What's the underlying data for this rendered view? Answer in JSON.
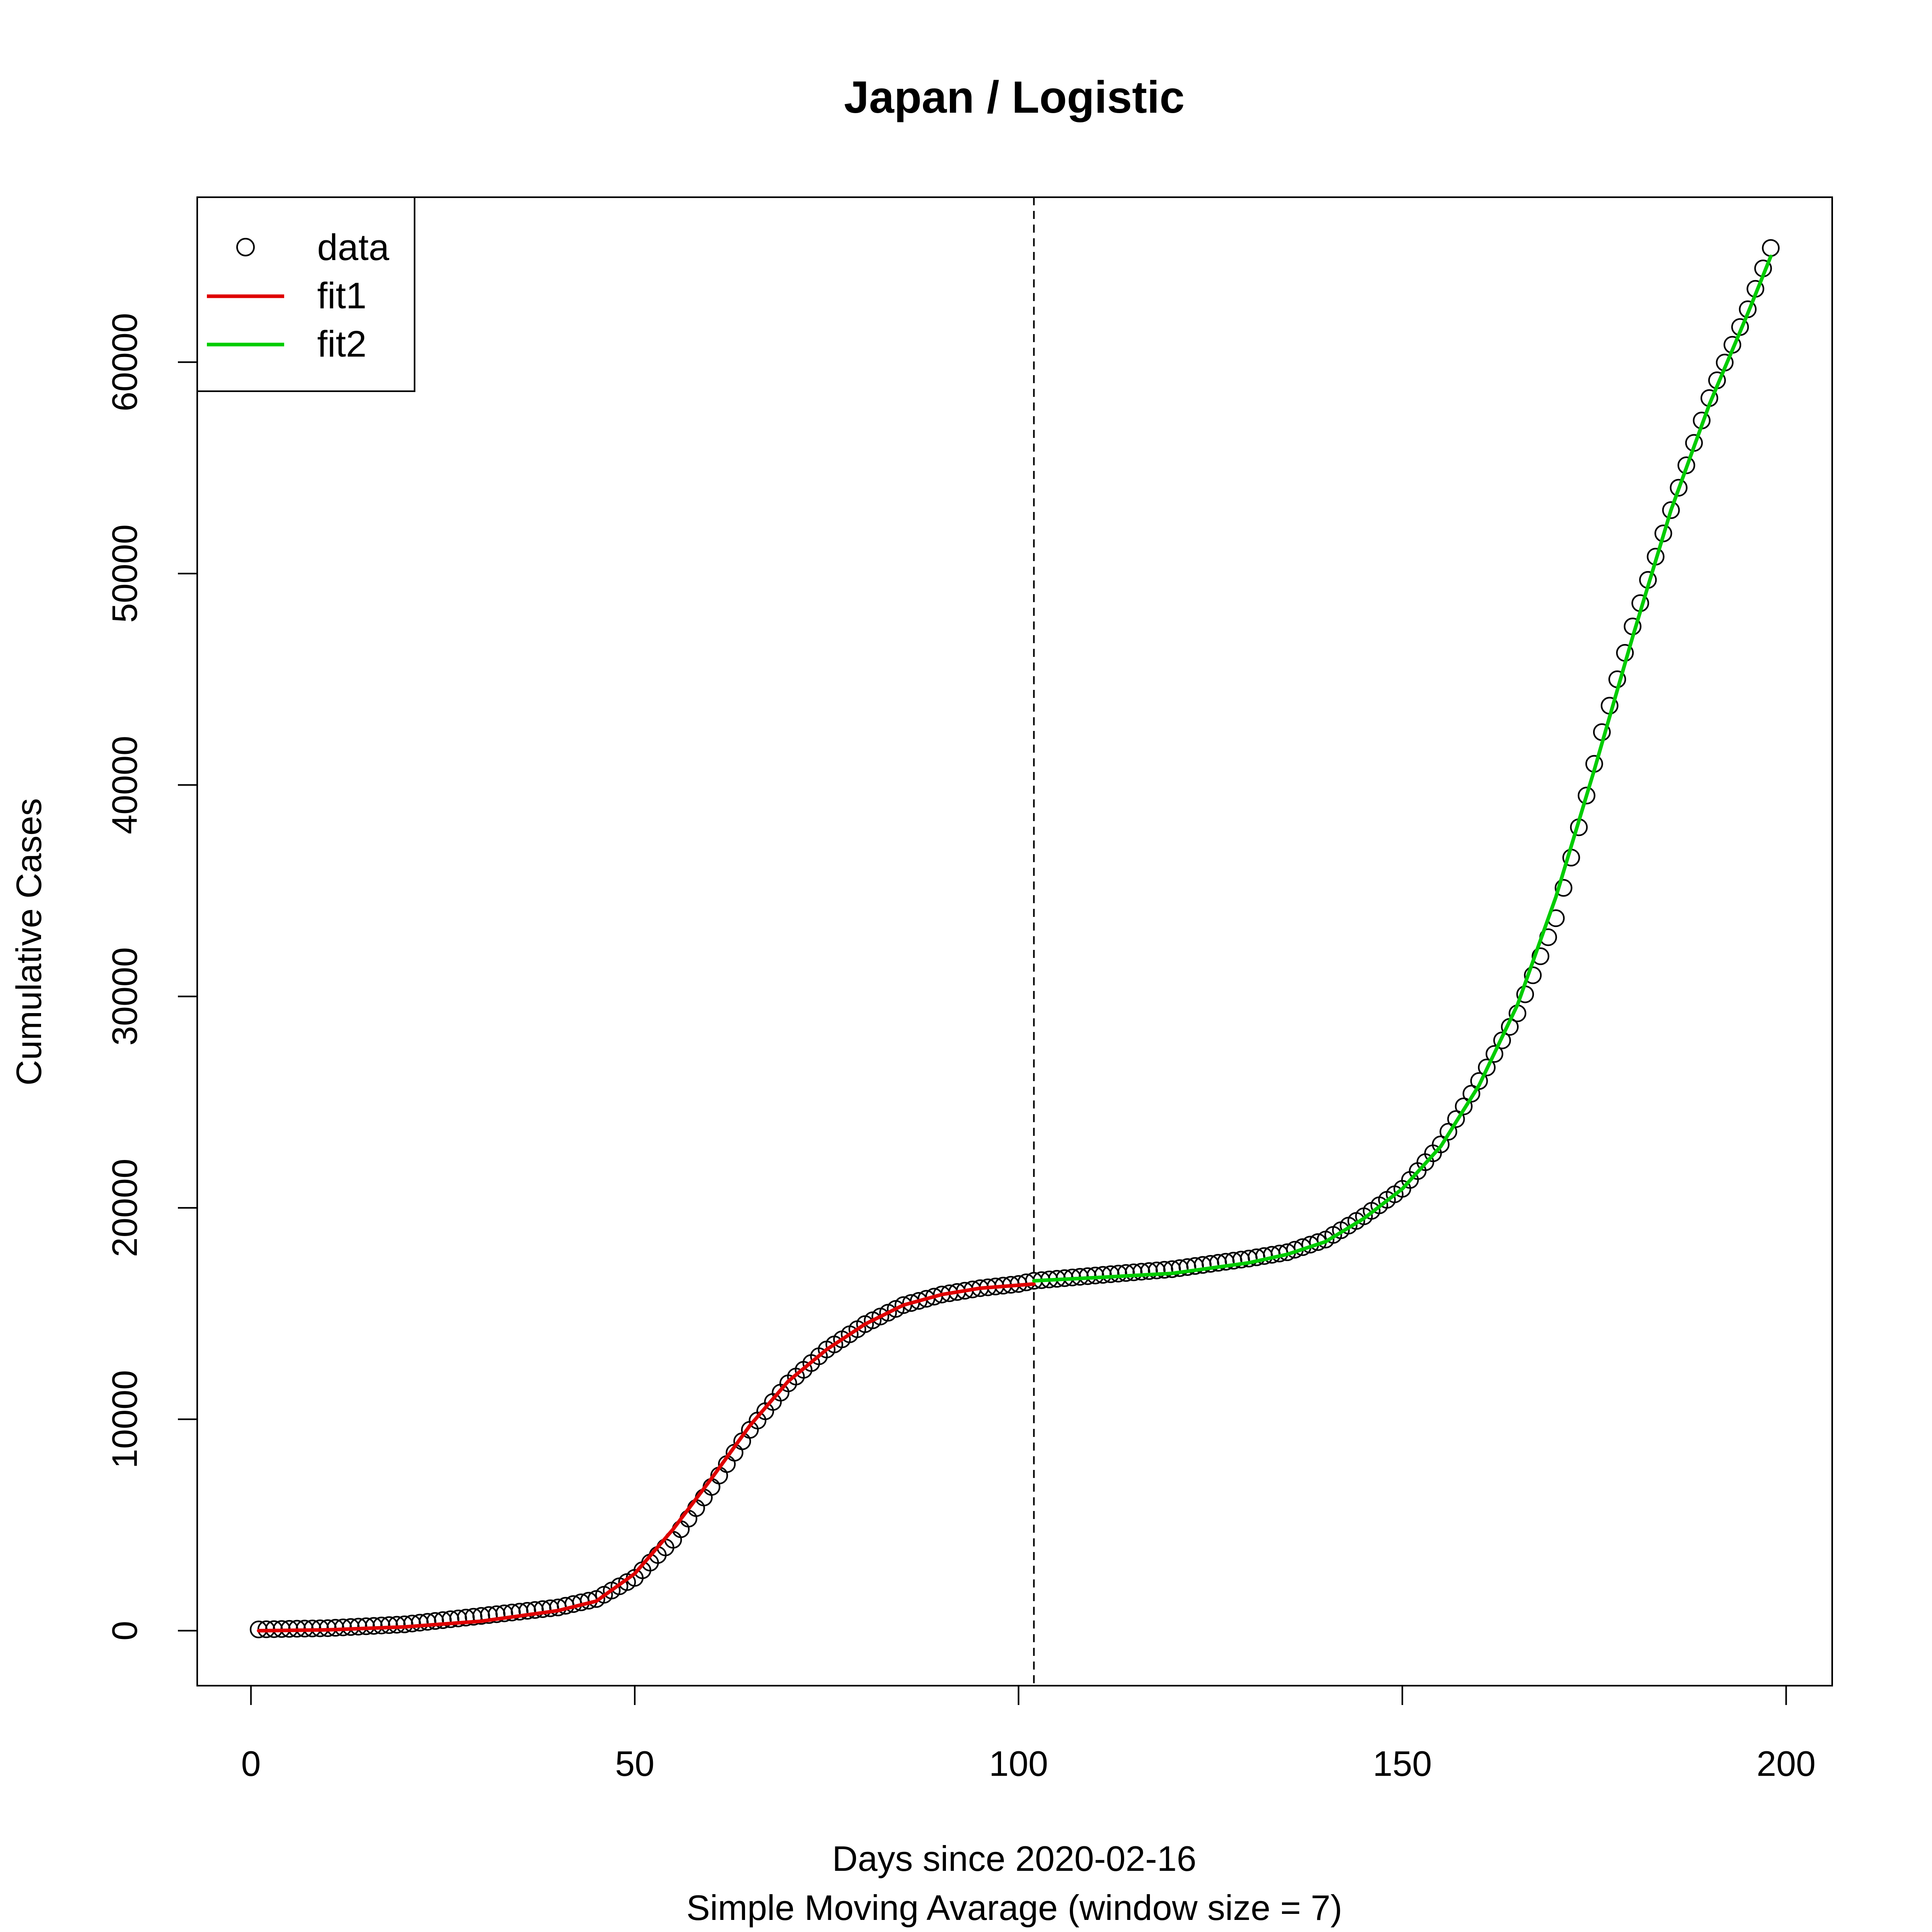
{
  "chart_data": {
    "type": "scatter",
    "title": "Japan / Logistic",
    "xlabel": "Days since 2020-02-16",
    "xlabel2": "Simple Moving Avarage (window size = 7)",
    "ylabel": "Cumulative Cases",
    "xlim": [
      -7,
      206
    ],
    "ylim": [
      -2600,
      67800
    ],
    "x_ticks": [
      0,
      50,
      100,
      150,
      200
    ],
    "y_ticks": [
      0,
      10000,
      20000,
      30000,
      40000,
      50000,
      60000
    ],
    "grid": false,
    "legend_position": "top-left",
    "legend": [
      {
        "label": "data",
        "kind": "point",
        "color": "#000000"
      },
      {
        "label": "fit1",
        "kind": "line",
        "color": "#df0000"
      },
      {
        "label": "fit2",
        "kind": "line",
        "color": "#00cc00"
      }
    ],
    "vline": {
      "x": 102,
      "style": "dashed",
      "color": "#000000"
    },
    "series": [
      {
        "name": "data",
        "kind": "points",
        "x_start": 1,
        "x_end": 198,
        "knots": [
          [
            1,
            60
          ],
          [
            10,
            120
          ],
          [
            20,
            300
          ],
          [
            30,
            700
          ],
          [
            40,
            1100
          ],
          [
            45,
            1500
          ],
          [
            50,
            2500
          ],
          [
            55,
            4300
          ],
          [
            60,
            6800
          ],
          [
            65,
            9500
          ],
          [
            70,
            11700
          ],
          [
            75,
            13300
          ],
          [
            80,
            14500
          ],
          [
            85,
            15400
          ],
          [
            90,
            15900
          ],
          [
            95,
            16200
          ],
          [
            100,
            16400
          ],
          [
            102,
            16550
          ],
          [
            110,
            16800
          ],
          [
            120,
            17100
          ],
          [
            130,
            17600
          ],
          [
            135,
            17900
          ],
          [
            140,
            18500
          ],
          [
            145,
            19600
          ],
          [
            150,
            20900
          ],
          [
            155,
            23000
          ],
          [
            160,
            26000
          ],
          [
            165,
            29200
          ],
          [
            170,
            33700
          ],
          [
            173,
            38000
          ],
          [
            176,
            42500
          ],
          [
            178,
            45000
          ],
          [
            180,
            47500
          ],
          [
            185,
            53000
          ],
          [
            190,
            58300
          ],
          [
            195,
            62500
          ],
          [
            198,
            65400
          ]
        ]
      },
      {
        "name": "fit1",
        "kind": "line",
        "color": "#df0000",
        "x_start": 1,
        "x_end": 102,
        "knots": [
          [
            1,
            0
          ],
          [
            10,
            40
          ],
          [
            20,
            180
          ],
          [
            30,
            450
          ],
          [
            40,
            950
          ],
          [
            45,
            1400
          ],
          [
            50,
            2700
          ],
          [
            55,
            4800
          ],
          [
            60,
            7200
          ],
          [
            65,
            9700
          ],
          [
            70,
            11800
          ],
          [
            75,
            13300
          ],
          [
            80,
            14500
          ],
          [
            85,
            15400
          ],
          [
            90,
            15900
          ],
          [
            95,
            16200
          ],
          [
            102,
            16400
          ]
        ]
      },
      {
        "name": "fit2",
        "kind": "line",
        "color": "#00cc00",
        "x_start": 102,
        "x_end": 198,
        "knots": [
          [
            102,
            16550
          ],
          [
            110,
            16700
          ],
          [
            120,
            16900
          ],
          [
            130,
            17400
          ],
          [
            135,
            17800
          ],
          [
            140,
            18400
          ],
          [
            145,
            19500
          ],
          [
            150,
            20900
          ],
          [
            155,
            22900
          ],
          [
            160,
            25800
          ],
          [
            165,
            29600
          ],
          [
            170,
            34700
          ],
          [
            175,
            40700
          ],
          [
            180,
            47000
          ],
          [
            185,
            53000
          ],
          [
            190,
            58000
          ],
          [
            195,
            62300
          ],
          [
            198,
            65000
          ]
        ]
      }
    ]
  }
}
